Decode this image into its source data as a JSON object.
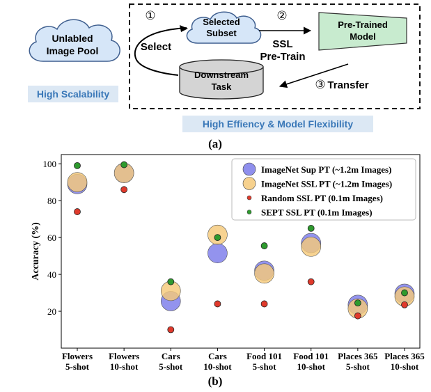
{
  "diagram": {
    "pool_label_line1": "Unlabled",
    "pool_label_line2": "Image Pool",
    "subset_label_line1": "Selected",
    "subset_label_line2": "Subset",
    "model_label_line1": "Pre-Trained",
    "model_label_line2": "Model",
    "task_label_line1": "Downstream",
    "task_label_line2": "Task",
    "step1": "①",
    "step2": "②",
    "step3": "③",
    "select_label": "Select",
    "ssl_label_line1": "SSL",
    "ssl_label_line2": "Pre-Train",
    "transfer_label": "Transfer",
    "scalability_badge": "High Scalability",
    "efficiency_badge": "High Effiency & Model Flexibility",
    "caption": "(a)"
  },
  "chart_data": {
    "type": "scatter",
    "ylabel": "Accuracy (%)",
    "ylim": [
      0,
      105
    ],
    "yticks": [
      20,
      40,
      60,
      80,
      100
    ],
    "grid": false,
    "legend_position": "top-right",
    "categories": [
      [
        "Flowers",
        "5-shot"
      ],
      [
        "Flowers",
        "10-shot"
      ],
      [
        "Cars",
        "5-shot"
      ],
      [
        "Cars",
        "10-shot"
      ],
      [
        "Food 101",
        "5-shot"
      ],
      [
        "Food 101",
        "10-shot"
      ],
      [
        "Places 365",
        "5-shot"
      ],
      [
        "Places 365",
        "10-shot"
      ]
    ],
    "series": [
      {
        "name": "ImageNet Sup PT (~1.2m Images)",
        "color": "#7b7bea",
        "marker": "large-circle",
        "values": [
          89,
          95,
          25.5,
          51.5,
          42,
          57,
          23.5,
          29.5
        ]
      },
      {
        "name": "ImageNet SSL PT (~1.2m Images)",
        "color": "#f5c97a",
        "marker": "large-circle",
        "values": [
          90,
          95,
          31,
          61.5,
          40.5,
          55,
          21.5,
          28
        ]
      },
      {
        "name": "Random SSL PT (0.1m Images)",
        "color": "#e03a2c",
        "marker": "small-circle",
        "values": [
          74,
          86,
          10,
          24,
          24,
          36,
          17.5,
          23.5
        ]
      },
      {
        "name": "SEPT SSL PT (0.1m Images)",
        "color": "#2e9a2e",
        "marker": "small-circle",
        "values": [
          99,
          99.5,
          36,
          60,
          55.5,
          65,
          24.5,
          30
        ]
      }
    ],
    "caption": "(b)"
  }
}
